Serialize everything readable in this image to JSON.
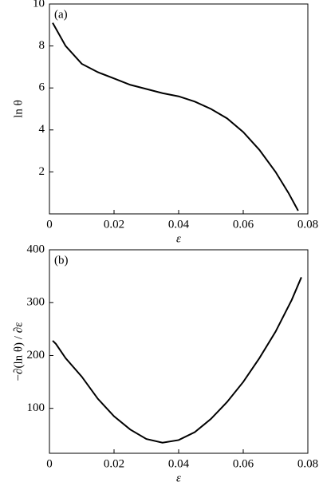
{
  "chart_data": [
    {
      "type": "line",
      "annotation": "(a)",
      "xlabel": "ε",
      "ylabel": "ln θ",
      "x": [
        0.001,
        0.005,
        0.01,
        0.015,
        0.02,
        0.025,
        0.03,
        0.035,
        0.04,
        0.045,
        0.05,
        0.055,
        0.06,
        0.065,
        0.07,
        0.074,
        0.077
      ],
      "series": [
        {
          "color": "#000000",
          "values": [
            9.1,
            8.0,
            7.15,
            6.75,
            6.45,
            6.15,
            5.95,
            5.75,
            5.6,
            5.35,
            5.0,
            4.55,
            3.9,
            3.05,
            2.0,
            1.0,
            0.15
          ]
        }
      ],
      "xlim": [
        0,
        0.08
      ],
      "ylim": [
        0,
        10
      ],
      "xticks": [
        0,
        0.02,
        0.04,
        0.06,
        0.08
      ],
      "yticks": [
        2,
        4,
        6,
        8,
        10
      ]
    },
    {
      "type": "line",
      "annotation": "(b)",
      "xlabel": "ε",
      "ylabel": "−∂(ln θ) / ∂ε",
      "x": [
        0.001,
        0.002,
        0.005,
        0.01,
        0.015,
        0.02,
        0.025,
        0.03,
        0.035,
        0.04,
        0.045,
        0.05,
        0.055,
        0.06,
        0.065,
        0.07,
        0.075,
        0.078
      ],
      "series": [
        {
          "color": "#000000",
          "values": [
            228,
            222,
            195,
            160,
            118,
            85,
            60,
            42,
            35,
            40,
            55,
            80,
            112,
            150,
            195,
            245,
            305,
            348
          ]
        }
      ],
      "xlim": [
        0,
        0.08
      ],
      "ylim": [
        15,
        400
      ],
      "xticks": [
        0,
        0.02,
        0.04,
        0.06,
        0.08
      ],
      "yticks": [
        100,
        200,
        300,
        400
      ]
    }
  ]
}
